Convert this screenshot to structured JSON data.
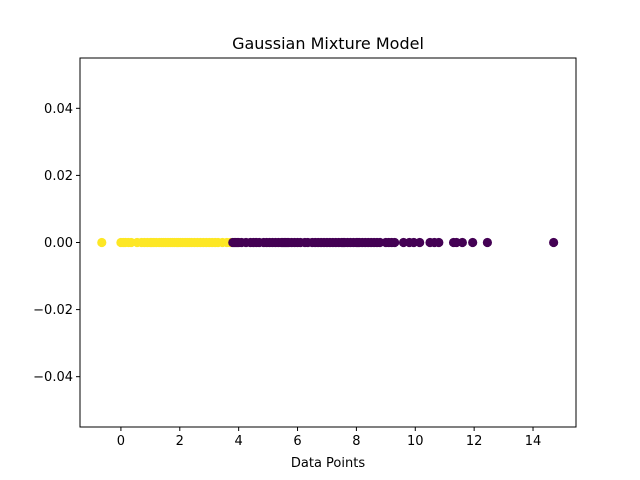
{
  "chart_data": {
    "type": "scatter",
    "title": "Gaussian Mixture Model",
    "xlabel": "Data Points",
    "ylabel": "",
    "xlim": [
      -1.39,
      15.46
    ],
    "ylim": [
      -0.055,
      0.055
    ],
    "grid": false,
    "legend": "none",
    "colors": {
      "cluster_0": "#fde725",
      "cluster_1": "#440154"
    },
    "x_ticks": [
      {
        "value": 0,
        "label": "0"
      },
      {
        "value": 2,
        "label": "2"
      },
      {
        "value": 4,
        "label": "4"
      },
      {
        "value": 6,
        "label": "6"
      },
      {
        "value": 8,
        "label": "8"
      },
      {
        "value": 10,
        "label": "10"
      },
      {
        "value": 12,
        "label": "12"
      },
      {
        "value": 14,
        "label": "14"
      }
    ],
    "y_ticks": [
      {
        "value": -0.04,
        "label": "−0.04"
      },
      {
        "value": -0.02,
        "label": "−0.02"
      },
      {
        "value": 0.0,
        "label": "0.00"
      },
      {
        "value": 0.02,
        "label": "0.02"
      },
      {
        "value": 0.04,
        "label": "0.04"
      }
    ],
    "series": [
      {
        "cluster": 0,
        "x": [
          -0.65,
          0.0,
          0.08,
          0.15,
          0.25,
          0.35,
          0.55,
          0.7,
          0.8,
          0.9,
          1.0,
          1.05,
          1.12,
          1.2,
          1.3,
          1.38,
          1.45,
          1.52,
          1.6,
          1.68,
          1.75,
          1.82,
          1.9,
          1.95,
          2.02,
          2.1,
          2.18,
          2.25,
          2.32,
          2.4,
          2.5,
          2.6,
          2.7,
          2.8,
          2.9,
          3.0,
          3.1,
          3.2,
          3.3,
          3.45,
          3.6,
          3.72
        ],
        "y": [
          0,
          0,
          0,
          0,
          0,
          0,
          0,
          0,
          0,
          0,
          0,
          0,
          0,
          0,
          0,
          0,
          0,
          0,
          0,
          0,
          0,
          0,
          0,
          0,
          0,
          0,
          0,
          0,
          0,
          0,
          0,
          0,
          0,
          0,
          0,
          0,
          0,
          0,
          0,
          0,
          0,
          0
        ]
      },
      {
        "cluster": 1,
        "x": [
          3.8,
          3.85,
          3.9,
          3.95,
          4.0,
          4.1,
          4.25,
          4.4,
          4.5,
          4.6,
          4.7,
          4.85,
          4.95,
          5.05,
          5.15,
          5.25,
          5.35,
          5.45,
          5.5,
          5.55,
          5.6,
          5.65,
          5.7,
          5.8,
          5.9,
          6.0,
          6.1,
          6.25,
          6.35,
          6.5,
          6.6,
          6.7,
          6.8,
          6.9,
          7.0,
          7.1,
          7.2,
          7.3,
          7.4,
          7.5,
          7.55,
          7.6,
          7.7,
          7.8,
          7.9,
          8.0,
          8.05,
          8.1,
          8.2,
          8.3,
          8.4,
          8.5,
          8.6,
          8.7,
          8.8,
          9.0,
          9.1,
          9.2,
          9.3,
          9.6,
          9.8,
          9.95,
          10.15,
          10.5,
          10.65,
          10.8,
          11.3,
          11.4,
          11.6,
          11.95,
          12.45,
          14.7
        ],
        "y": [
          0,
          0,
          0,
          0,
          0,
          0,
          0,
          0,
          0,
          0,
          0,
          0,
          0,
          0,
          0,
          0,
          0,
          0,
          0,
          0,
          0,
          0,
          0,
          0,
          0,
          0,
          0,
          0,
          0,
          0,
          0,
          0,
          0,
          0,
          0,
          0,
          0,
          0,
          0,
          0,
          0,
          0,
          0,
          0,
          0,
          0,
          0,
          0,
          0,
          0,
          0,
          0,
          0,
          0,
          0,
          0,
          0,
          0,
          0,
          0,
          0,
          0,
          0,
          0,
          0,
          0,
          0,
          0,
          0,
          0,
          0,
          0
        ]
      }
    ]
  }
}
